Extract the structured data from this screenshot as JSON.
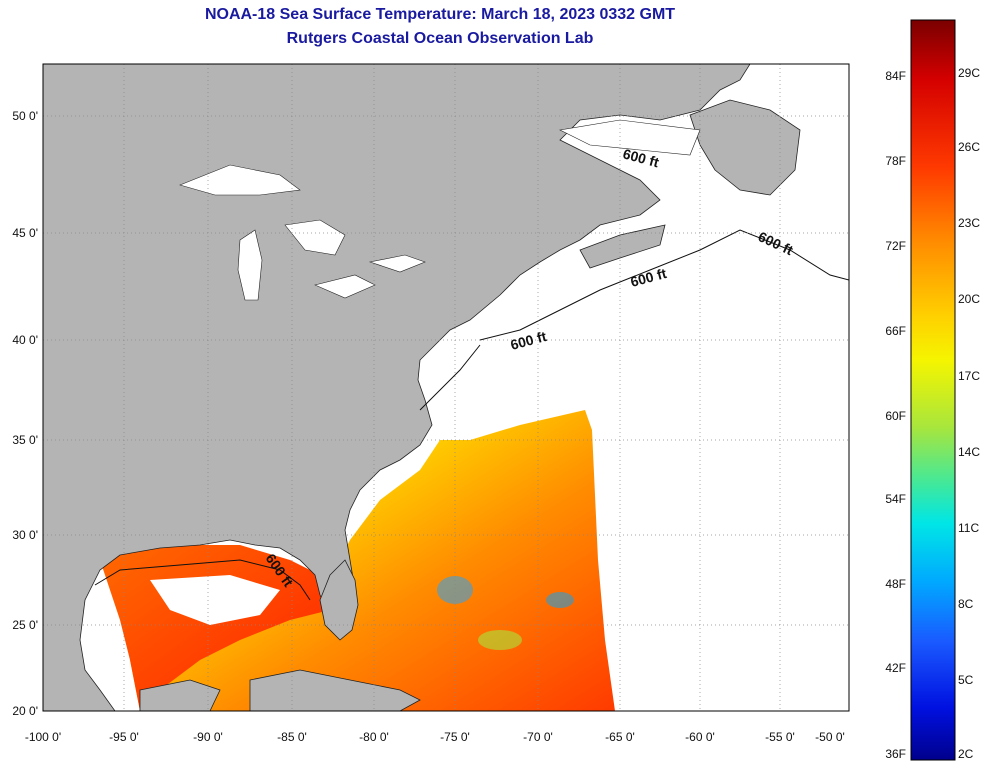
{
  "title": {
    "line1": "NOAA-18 Sea Surface Temperature:  March 18, 2023 0332 GMT",
    "line2": "Rutgers Coastal Ocean Observation Lab"
  },
  "map": {
    "lon_labels": [
      "-100 0'",
      "-95 0'",
      "-90 0'",
      "-85 0'",
      "-80 0'",
      "-75 0'",
      "-70 0'",
      "-65 0'",
      "-60 0'",
      "-55 0'",
      "-50 0'"
    ],
    "lat_labels": [
      "20 0'",
      "25 0'",
      "30 0'",
      "35 0'",
      "40 0'",
      "45 0'",
      "50 0'"
    ],
    "contour_label": "600 ft",
    "colors": {
      "land": "#b4b4b4",
      "water_no_data": "#ffffff",
      "gridline": "#888888"
    }
  },
  "colorbar": {
    "fahrenheit_labels": [
      "84F",
      "78F",
      "72F",
      "66F",
      "60F",
      "54F",
      "48F",
      "42F",
      "36F"
    ],
    "celsius_labels": [
      "29C",
      "26C",
      "23C",
      "20C",
      "17C",
      "14C",
      "11C",
      "8C",
      "5C",
      "2C"
    ],
    "colors": [
      "#7a0000",
      "#d40000",
      "#ff3a00",
      "#ff8c00",
      "#ffd000",
      "#f5f500",
      "#a8e63c",
      "#3ce8a0",
      "#00e6e6",
      "#00a8ff",
      "#1a5aff",
      "#0010e0",
      "#00008c"
    ]
  }
}
